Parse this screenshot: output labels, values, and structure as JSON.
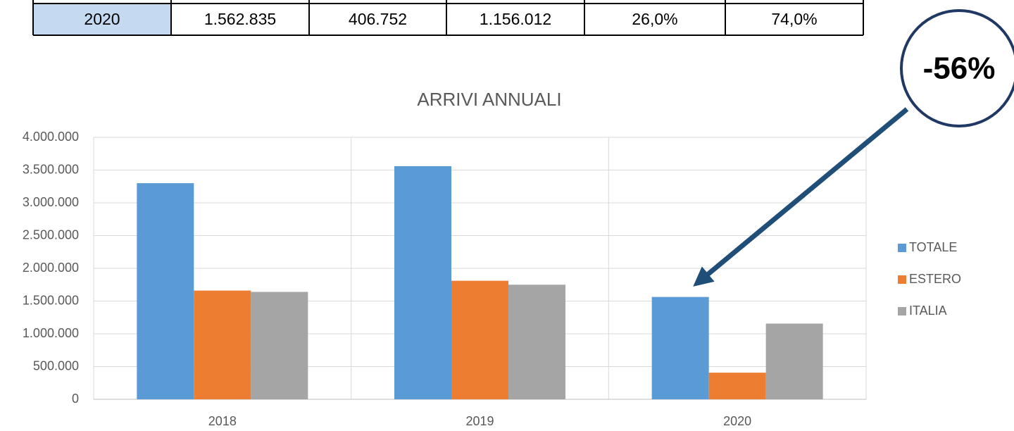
{
  "table": {
    "rows": [
      [
        "2020",
        "1.562.835",
        "406.752",
        "1.156.012",
        "26,0%",
        "74,0%"
      ]
    ]
  },
  "chart_data": {
    "type": "bar",
    "title": "ARRIVI ANNUALI",
    "annotation": "-56%",
    "categories": [
      "2018",
      "2019",
      "2020"
    ],
    "series": [
      {
        "name": "TOTALE",
        "color": "#5b9bd5",
        "values": [
          3300000,
          3560000,
          1562835
        ]
      },
      {
        "name": "ESTERO",
        "color": "#ed7d31",
        "values": [
          1660000,
          1810000,
          406752
        ]
      },
      {
        "name": "ITALIA",
        "color": "#a5a5a5",
        "values": [
          1640000,
          1750000,
          1156012
        ]
      }
    ],
    "ylim": [
      0,
      4000000
    ],
    "yticks": [
      0,
      {
        "value": 500000,
        "label": "500.000"
      },
      {
        "value": 1000000,
        "label": "1.000.000"
      },
      {
        "value": 1500000,
        "label": "1.500.000"
      },
      {
        "value": 2000000,
        "label": "2.000.000"
      },
      {
        "value": 2500000,
        "label": "2.500.000"
      },
      {
        "value": 3000000,
        "label": "3.000.000"
      },
      {
        "value": 3500000,
        "label": "3.500.000"
      },
      {
        "value": 4000000,
        "label": "4.000.000"
      }
    ],
    "grid": true,
    "legend": "right"
  }
}
